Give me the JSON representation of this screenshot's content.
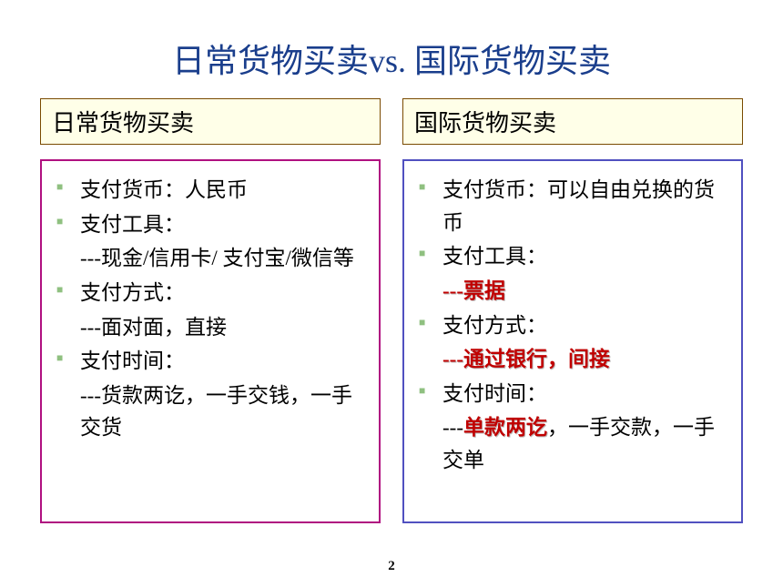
{
  "title": "日常货物买卖vs. 国际货物买卖",
  "pageNumber": "2",
  "colors": {
    "title": "#1a3e8c",
    "leftBorder": "#b01080",
    "rightBorder": "#5050c0",
    "headerBorder": "#7a4a00",
    "headerBg": "#ffffe8",
    "bullet": "#8fc080",
    "emphasis": "#c00000"
  },
  "left": {
    "header": "日常货物买卖",
    "items": {
      "currency": "支付货币：人民币",
      "tool": "支付工具：",
      "toolDetail": "---现金/信用卡/ 支付宝/微信等",
      "method": "支付方式：",
      "methodDetail": "---面对面，直接",
      "time": "支付时间：",
      "timeDetail": "---货款两讫，一手交钱，一手交货"
    }
  },
  "right": {
    "header": "国际货物买卖",
    "items": {
      "currency": "支付货币：可以自由兑换的货币",
      "tool": "支付工具：",
      "toolPrefix": "---",
      "toolEmph": "票据",
      "method": "支付方式：",
      "methodPrefix": "---",
      "methodEmph": "通过银行，间接",
      "time": "支付时间：",
      "timePrefix": "---",
      "timeEmph": "单款两讫",
      "timeSuffix": "，一手交款，一手交单"
    }
  }
}
